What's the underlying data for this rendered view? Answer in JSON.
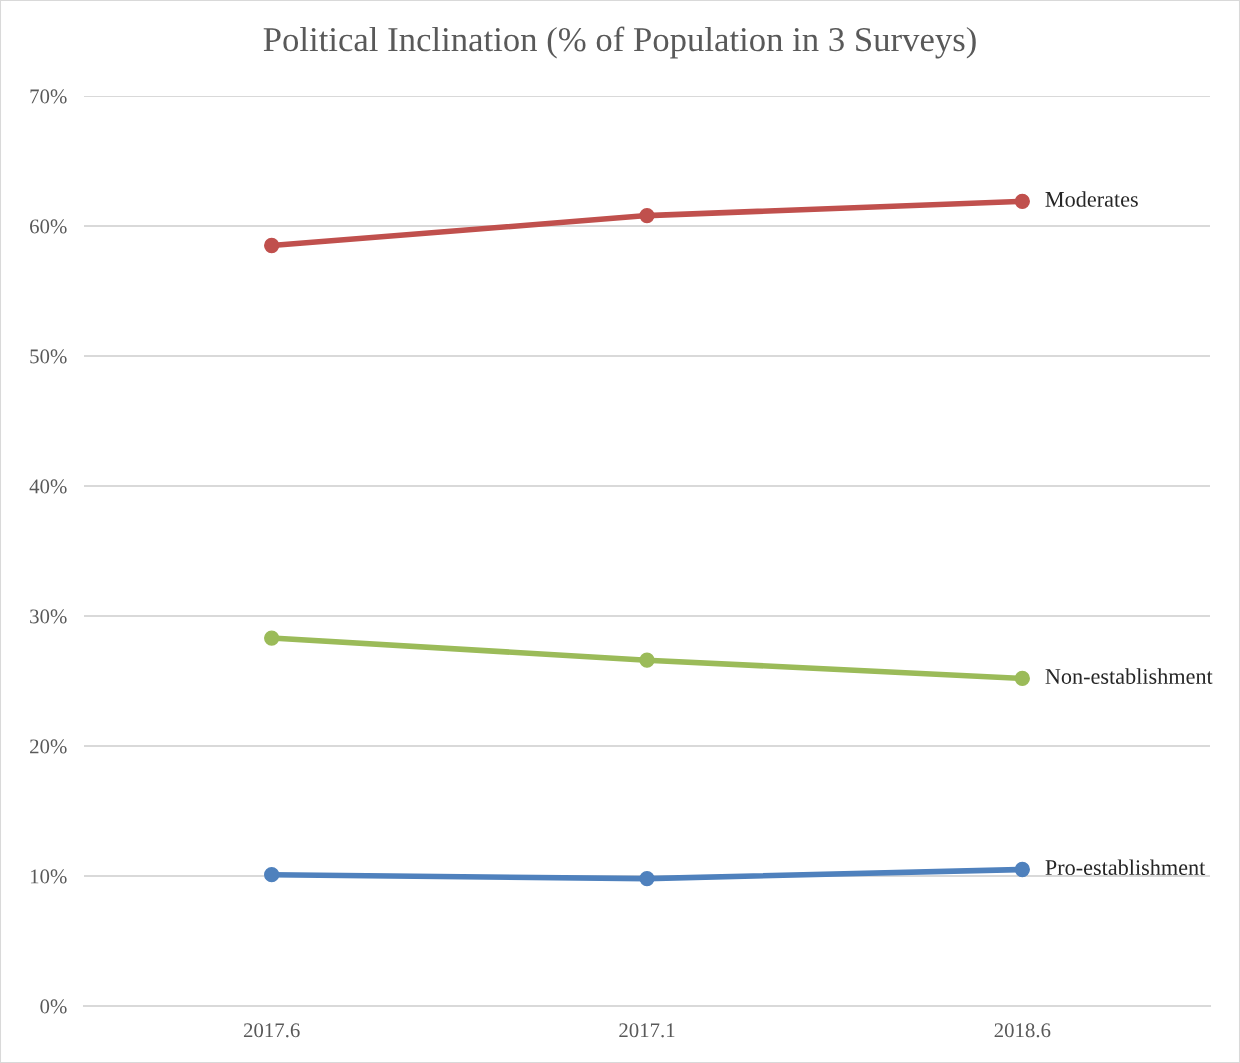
{
  "chart_data": {
    "type": "line",
    "title": "Political Inclination (% of Population in 3 Surveys)",
    "categories": [
      "2017.6",
      "2017.1",
      "2018.6"
    ],
    "series": [
      {
        "name": "Moderates",
        "color": "#c0504d",
        "values": [
          58.5,
          60.8,
          61.9
        ]
      },
      {
        "name": "Non-establishment",
        "color": "#9bbb59",
        "values": [
          28.3,
          26.6,
          25.2
        ]
      },
      {
        "name": "Pro-establishment",
        "color": "#4f81bd",
        "values": [
          10.1,
          9.8,
          10.5
        ]
      }
    ],
    "ylim": [
      0,
      70
    ],
    "yticks": [
      {
        "value": 0,
        "label": "0%"
      },
      {
        "value": 10,
        "label": "10%"
      },
      {
        "value": 20,
        "label": "20%"
      },
      {
        "value": 30,
        "label": "30%"
      },
      {
        "value": 40,
        "label": "40%"
      },
      {
        "value": 50,
        "label": "50%"
      },
      {
        "value": 60,
        "label": "60%"
      },
      {
        "value": 70,
        "label": "70%"
      }
    ],
    "grid": "y",
    "legend": false,
    "marker": "circle",
    "line_style": "solid"
  }
}
